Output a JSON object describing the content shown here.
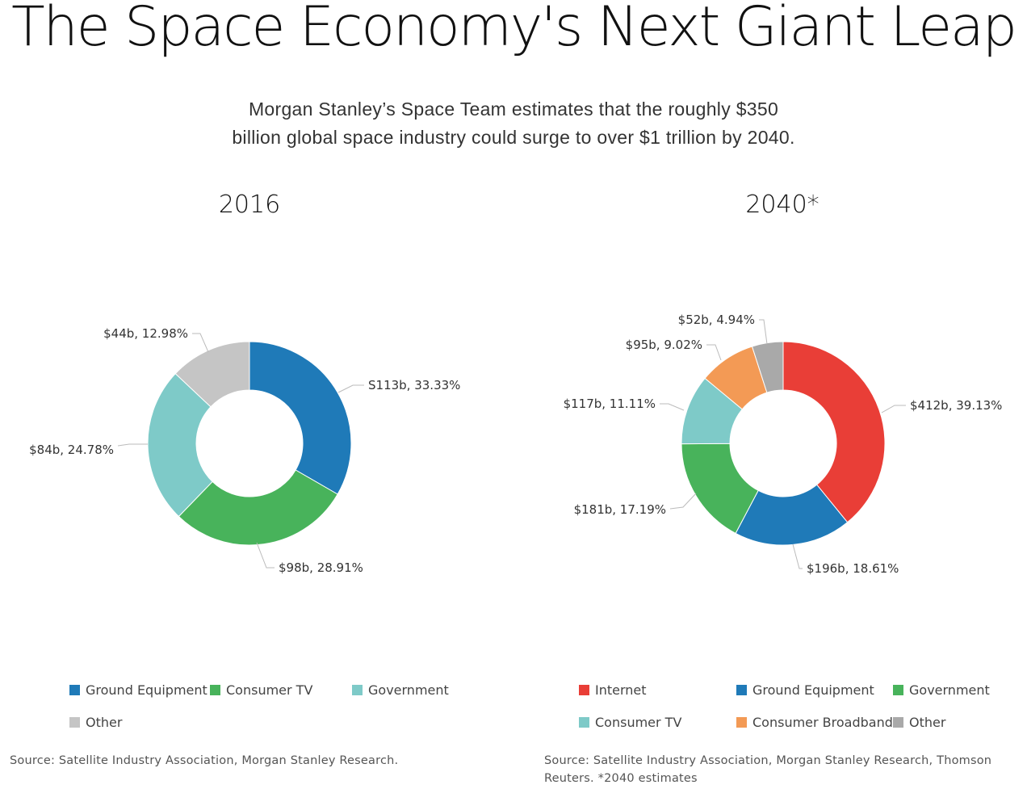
{
  "title": "The Space Economy's Next Giant Leap",
  "subtitle": "Morgan Stanley’s Space Team estimates that the roughly $350 billion global space industry could surge to over $1 trillion by 2040.",
  "chart_data": [
    {
      "type": "pie",
      "title": "2016",
      "slices": [
        {
          "name": "Ground Equipment",
          "value": 113,
          "label": "S113b, 33.33%",
          "color": "#1f7ab8"
        },
        {
          "name": "Consumer TV",
          "value": 98,
          "label": "$98b, 28.91%",
          "color": "#48b35b"
        },
        {
          "name": "Government",
          "value": 84,
          "label": "$84b, 24.78%",
          "color": "#7ecac8"
        },
        {
          "name": "Other",
          "value": 44,
          "label": "$44b, 12.98%",
          "color": "#c5c5c5"
        }
      ],
      "legend": [
        "Ground Equipment",
        "Consumer TV",
        "Government",
        "Other"
      ],
      "legend_placement": "bottom",
      "source": "Source: Satellite Industry Association, Morgan Stanley Research."
    },
    {
      "type": "pie",
      "title": "2040*",
      "slices": [
        {
          "name": "Internet",
          "value": 412,
          "label": "$412b, 39.13%",
          "color": "#e93e37"
        },
        {
          "name": "Ground Equipment",
          "value": 196,
          "label": "$196b, 18.61%",
          "color": "#1f7ab8"
        },
        {
          "name": "Government",
          "value": 181,
          "label": "$181b, 17.19%",
          "color": "#48b35b"
        },
        {
          "name": "Consumer TV",
          "value": 117,
          "label": "$117b, 11.11%",
          "color": "#7ecac8"
        },
        {
          "name": "Consumer Broadband",
          "value": 95,
          "label": "$95b, 9.02%",
          "color": "#f39a55"
        },
        {
          "name": "Other",
          "value": 52,
          "label": "$52b, 4.94%",
          "color": "#a9a9a9"
        }
      ],
      "legend": [
        "Internet",
        "Ground Equipment",
        "Government",
        "Consumer TV",
        "Consumer Broadband",
        "Other"
      ],
      "legend_placement": "bottom",
      "source": "Source: Satellite Industry Association, Morgan Stanley Research, Thomson Reuters. *2040 estimates"
    }
  ]
}
